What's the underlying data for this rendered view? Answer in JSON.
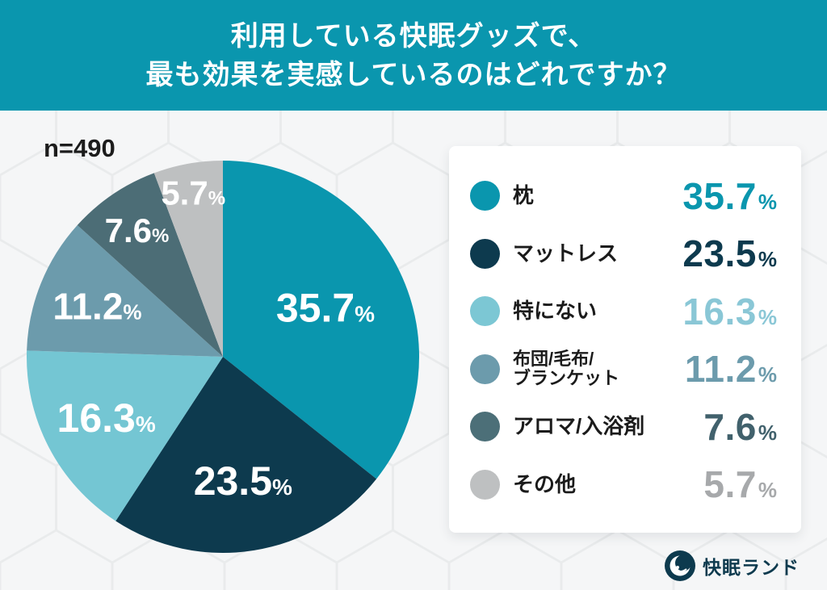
{
  "header": {
    "title_line1": "利用している快眠グッズで、",
    "title_line2": "最も効果を実感しているのはどれですか？",
    "bg_color": "#0a96ae"
  },
  "sample_size_label": "n=490",
  "chart_data": {
    "type": "pie",
    "title": "利用している快眠グッズで、最も効果を実感しているのはどれですか？",
    "sample_size": "n=490",
    "unit": "%",
    "start_angle_deg": -90,
    "direction": "clockwise",
    "categories": [
      "枕",
      "マットレス",
      "特にない",
      "布団/毛布/ブランケット",
      "アロマ/入浴剤",
      "その他"
    ],
    "values": [
      35.7,
      23.5,
      16.3,
      11.2,
      7.6,
      5.7
    ],
    "colors": [
      "#0a96ae",
      "#0d3a4e",
      "#74c6d3",
      "#6c9bac",
      "#4c6d76",
      "#bec0c1"
    ],
    "slice_label_color": "#ffffff",
    "label_radius_fraction": [
      0.58,
      0.64,
      0.67,
      0.69,
      0.78,
      0.85
    ],
    "legend_position": "right"
  },
  "legend": {
    "percent_sign": "%",
    "items": [
      {
        "label_lines": [
          "枕"
        ],
        "value": "35.7",
        "swatch_color": "#0a96ae",
        "value_color": "#0a96ae"
      },
      {
        "label_lines": [
          "マットレス"
        ],
        "value": "23.5",
        "swatch_color": "#0d3a4e",
        "value_color": "#0d3a4e"
      },
      {
        "label_lines": [
          "特にない"
        ],
        "value": "16.3",
        "swatch_color": "#7cc7d4",
        "value_color": "#8ac7d6"
      },
      {
        "label_lines": [
          "布団/毛布/",
          "ブランケット"
        ],
        "value": "11.2",
        "swatch_color": "#6c9bac",
        "value_color": "#6c9bac"
      },
      {
        "label_lines": [
          "アロマ/入浴剤"
        ],
        "value": "7.6",
        "swatch_color": "#4c6f78",
        "value_color": "#41616c"
      },
      {
        "label_lines": [
          "その他"
        ],
        "value": "5.7",
        "swatch_color": "#bec0c1",
        "value_color": "#a7a9ab"
      }
    ]
  },
  "footer": {
    "brand": "快眠ランド",
    "brand_color": "#0d3a4e"
  }
}
